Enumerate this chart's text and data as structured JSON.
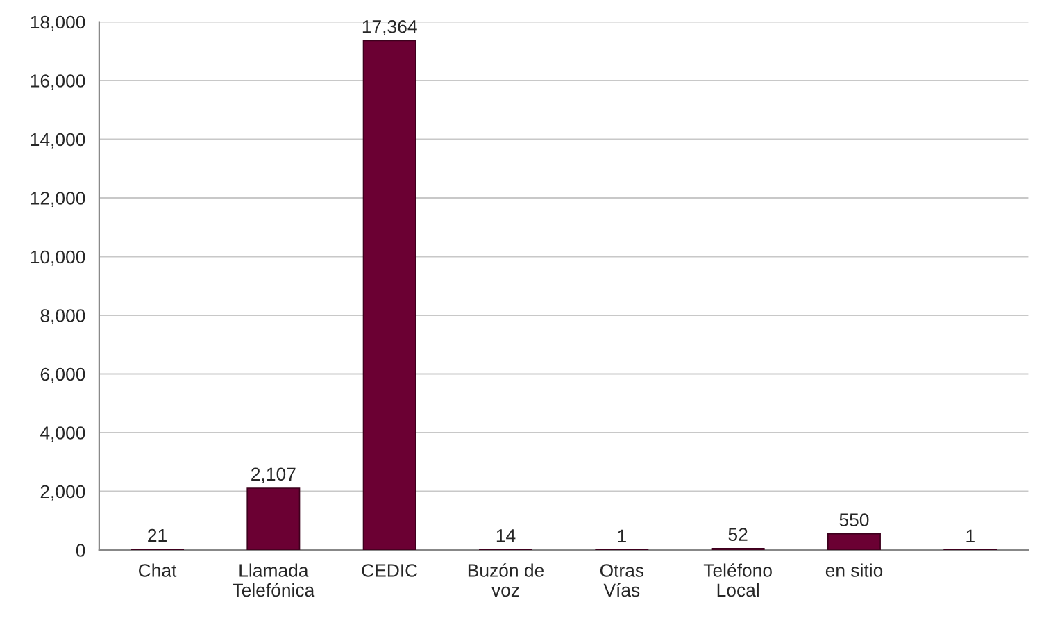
{
  "chart_data": {
    "type": "bar",
    "categories": [
      "Chat",
      "Llamada\nTelefónica",
      "CEDIC",
      "Buzón de\nvoz",
      "Otras\nVías",
      "Teléfono\nLocal",
      "en sitio",
      null
    ],
    "values": [
      21,
      2107,
      17364,
      14,
      1,
      52,
      550,
      1
    ],
    "value_labels": [
      "21",
      "2,107",
      "17,364",
      "14",
      "1",
      "52",
      "550",
      "1"
    ],
    "color": "#6b0033",
    "ylim": [
      0,
      18000
    ],
    "yticks": [
      0,
      {
        "value": 2000,
        "label": "2,000"
      },
      {
        "value": 4000,
        "label": "4,000"
      },
      {
        "value": 6000,
        "label": "6,000"
      },
      {
        "value": 8000,
        "label": "8,000"
      },
      {
        "value": 10000,
        "label": "10,000"
      },
      {
        "value": 12000,
        "label": "12,000"
      },
      {
        "value": 14000,
        "label": "14,000"
      },
      {
        "value": 16000,
        "label": "16,000"
      },
      {
        "value": 18000,
        "label": "18,000"
      }
    ],
    "grid": "y"
  }
}
